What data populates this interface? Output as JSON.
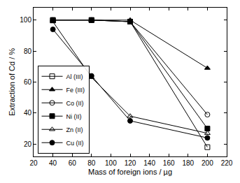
{
  "chart_data": {
    "type": "line",
    "x_label": "Mass of foreign ions / µg",
    "y_label": "Extraction of Cd / %",
    "x": [
      40,
      80,
      120,
      200
    ],
    "series": [
      {
        "name": "Al (III)",
        "color": "#000000",
        "marker": "square-open",
        "values": [
          100,
          100,
          99,
          18
        ]
      },
      {
        "name": "Fe (III)",
        "color": "#000000",
        "marker": "triangle-up",
        "values": [
          100,
          100,
          100,
          69
        ]
      },
      {
        "name": "Co (II)",
        "color": "#000000",
        "marker": "circle-open",
        "values": [
          100,
          100,
          99,
          39
        ]
      },
      {
        "name": "Ni (II)",
        "color": "#000000",
        "marker": "square",
        "values": [
          100,
          100,
          99,
          30
        ]
      },
      {
        "name": "Zn (II)",
        "color": "#000000",
        "marker": "triangle-up-open",
        "values": [
          99,
          63,
          38,
          27
        ]
      },
      {
        "name": "Cu (II)",
        "color": "#000000",
        "marker": "circle",
        "values": [
          94,
          64,
          35,
          24
        ]
      }
    ],
    "xlim": [
      20,
      220
    ],
    "xticks": [
      20,
      40,
      60,
      80,
      100,
      120,
      140,
      160,
      180,
      200,
      220
    ],
    "ylim": [
      12,
      108
    ],
    "yticks": [
      20,
      40,
      60,
      80,
      100
    ],
    "grid": false,
    "legend": "lower left"
  }
}
